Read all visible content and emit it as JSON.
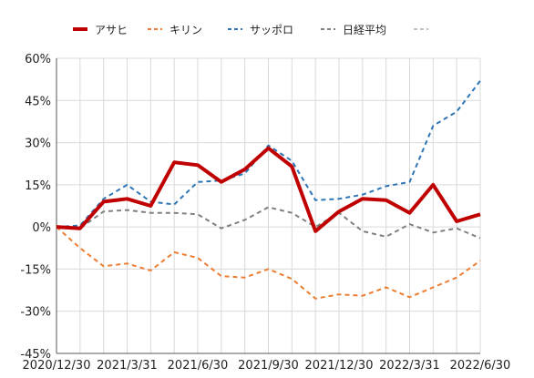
{
  "chart_data": {
    "type": "line",
    "title": "",
    "xlabel": "",
    "ylabel": "",
    "ylim": [
      -45,
      60
    ],
    "yticks": [
      60,
      45,
      30,
      15,
      0,
      -15,
      -30,
      -45
    ],
    "ytick_labels": [
      "60%",
      "45%",
      "30%",
      "15%",
      "0%",
      "-15%",
      "-30%",
      "-45%"
    ],
    "x_tick_labels": [
      "2020/12/30",
      "2021/3/31",
      "2021/6/30",
      "2021/9/30",
      "2021/12/30",
      "2022/3/31",
      "2022/6/30"
    ],
    "grid": true,
    "legend_position": "top",
    "x_points": 19,
    "series": [
      {
        "name": "アサヒ",
        "color": "#c00000",
        "style": "solid",
        "values": [
          0,
          -0.5,
          9,
          10,
          7.5,
          23,
          22,
          16,
          20.5,
          28,
          21.5,
          -1.5,
          5.5,
          10,
          9.5,
          5,
          15,
          2,
          4.5
        ]
      },
      {
        "name": "キリン",
        "color": "#ed7d31",
        "style": "dashed",
        "values": [
          0,
          -7.5,
          -14,
          -13,
          -15.5,
          -9,
          -11,
          -17.5,
          -18,
          -15,
          -18.5,
          -25.5,
          -24,
          -24.5,
          -21.5,
          -25,
          -21.5,
          -18,
          -12
        ]
      },
      {
        "name": "サッポロ",
        "color": "#2e75b6",
        "style": "dashed",
        "values": [
          0,
          0.5,
          10,
          15,
          9,
          8,
          16,
          16.5,
          19,
          29,
          23.5,
          9.5,
          10,
          11.5,
          14.5,
          16,
          36,
          41,
          52
        ]
      },
      {
        "name": "日経平均",
        "color": "#808080",
        "style": "dashed",
        "values": [
          0,
          -0.5,
          5.5,
          6,
          5,
          5,
          4.5,
          -0.5,
          2.5,
          7,
          5,
          0,
          5,
          -1.5,
          -3.5,
          1,
          -2,
          -0.5,
          -4
        ]
      },
      {
        "name": "",
        "color": "#c0c0c0",
        "style": "dashed",
        "values": []
      }
    ]
  }
}
